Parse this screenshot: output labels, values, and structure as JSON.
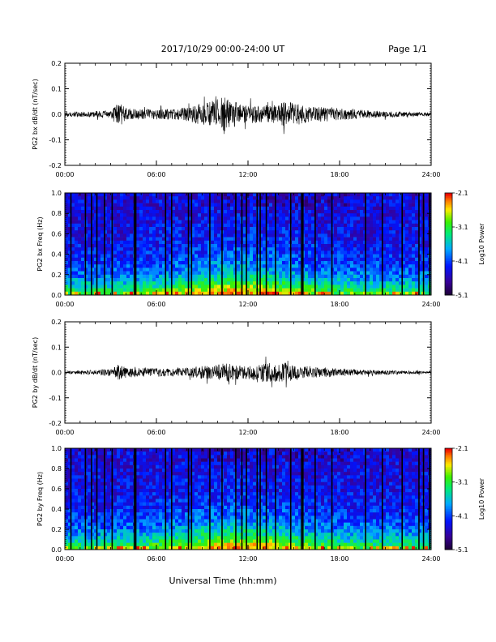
{
  "header": {
    "title": "2017/10/29  00:00-24:00 UT",
    "page": "Page 1/1"
  },
  "footer": {
    "xlabel": "Universal Time (hh:mm)"
  },
  "chart_data": [
    {
      "type": "line",
      "ylabel": "PG2 bx dB/dt (nT/sec)",
      "ylim": [
        -0.2,
        0.2
      ],
      "yticks": [
        "0.2",
        "0.1",
        "0.0",
        "-0.1",
        "-0.2"
      ],
      "xticks": [
        "00:00",
        "06:00",
        "12:00",
        "18:00",
        "24:00"
      ],
      "xlim_hours": [
        0,
        24
      ],
      "series": [
        {
          "envelope_hours": [
            0,
            1,
            2,
            3,
            3.5,
            4,
            5,
            6,
            7,
            8,
            9,
            10,
            10.5,
            11,
            12,
            13,
            14,
            14.5,
            15,
            16,
            17,
            18,
            19,
            20,
            21,
            22,
            23,
            24
          ],
          "envelope_amp": [
            0.008,
            0.01,
            0.012,
            0.015,
            0.05,
            0.025,
            0.02,
            0.02,
            0.02,
            0.03,
            0.04,
            0.06,
            0.07,
            0.05,
            0.035,
            0.035,
            0.04,
            0.05,
            0.045,
            0.03,
            0.03,
            0.025,
            0.02,
            0.015,
            0.012,
            0.01,
            0.008,
            0.007
          ]
        }
      ]
    },
    {
      "type": "heatmap",
      "ylabel": "PG2 bx Freq (Hz)",
      "ylim": [
        0.0,
        1.0
      ],
      "yticks": [
        "1.0",
        "0.8",
        "0.6",
        "0.4",
        "0.2",
        "0.0"
      ],
      "xticks": [
        "00:00",
        "06:00",
        "12:00",
        "18:00",
        "24:00"
      ],
      "colorbar": {
        "label": "Log10 Power",
        "range": [
          -5.1,
          -2.1
        ],
        "ticks": [
          "-2.1",
          "-3.1",
          "-4.1",
          "-5.1"
        ]
      },
      "gap_hours": [
        0.4,
        1.35,
        1.75,
        2.1,
        2.6,
        3.1,
        4.55,
        4.65,
        6.6,
        7.0,
        8.1,
        8.3,
        9.5,
        10.3,
        11.2,
        11.6,
        11.9,
        12.6,
        12.8,
        13.2,
        13.8,
        14.8,
        15.5,
        15.6,
        16.4,
        17.5,
        19.7,
        20.8,
        22.1,
        23.2,
        23.5,
        23.9
      ]
    },
    {
      "type": "line",
      "ylabel": "PG2 by dB/dt (nT/sec)",
      "ylim": [
        -0.2,
        0.2
      ],
      "yticks": [
        "0.2",
        "0.1",
        "0.0",
        "-0.1",
        "-0.2"
      ],
      "xticks": [
        "00:00",
        "06:00",
        "12:00",
        "18:00",
        "24:00"
      ],
      "xlim_hours": [
        0,
        24
      ],
      "series": [
        {
          "envelope_hours": [
            0,
            1,
            2,
            3,
            3.5,
            4,
            5,
            6,
            7,
            8,
            9,
            10,
            10.5,
            11,
            12,
            13,
            14,
            14.5,
            15,
            16,
            17,
            18,
            19,
            20,
            21,
            22,
            23,
            24
          ],
          "envelope_amp": [
            0.006,
            0.008,
            0.01,
            0.015,
            0.03,
            0.02,
            0.018,
            0.016,
            0.016,
            0.02,
            0.025,
            0.03,
            0.04,
            0.03,
            0.025,
            0.04,
            0.035,
            0.045,
            0.03,
            0.025,
            0.02,
            0.015,
            0.012,
            0.01,
            0.008,
            0.007,
            0.006,
            0.005
          ]
        }
      ]
    },
    {
      "type": "heatmap",
      "ylabel": "PG2 by Freq (Hz)",
      "ylim": [
        0.0,
        1.0
      ],
      "yticks": [
        "1.0",
        "0.8",
        "0.6",
        "0.4",
        "0.2",
        "0.0"
      ],
      "xticks": [
        "00:00",
        "06:00",
        "12:00",
        "18:00",
        "24:00"
      ],
      "colorbar": {
        "label": "Log10 Power",
        "range": [
          -5.1,
          -2.1
        ],
        "ticks": [
          "-2.1",
          "-3.1",
          "-4.1",
          "-5.1"
        ]
      },
      "gap_hours": [
        0.4,
        1.35,
        1.75,
        2.1,
        2.6,
        3.1,
        4.55,
        4.65,
        6.6,
        7.0,
        8.1,
        8.3,
        9.5,
        10.3,
        11.2,
        11.6,
        11.9,
        12.6,
        12.8,
        13.2,
        13.8,
        14.8,
        15.5,
        15.6,
        16.4,
        17.5,
        19.7,
        20.8,
        22.1,
        23.2,
        23.5,
        23.9
      ]
    }
  ]
}
